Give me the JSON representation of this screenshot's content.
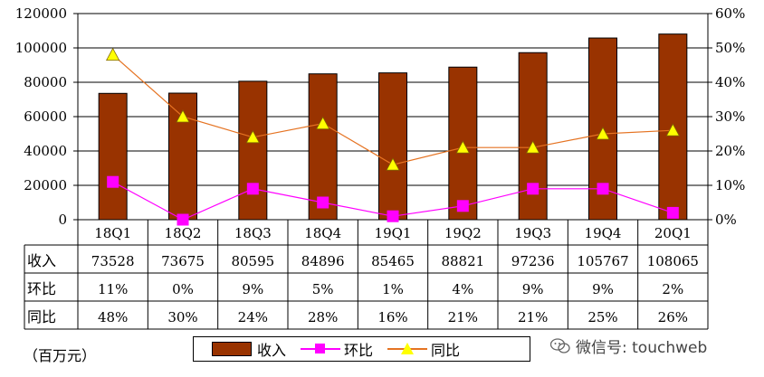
{
  "chart_data": {
    "type": "bar",
    "categories": [
      "18Q1",
      "18Q2",
      "18Q3",
      "18Q4",
      "19Q1",
      "19Q2",
      "19Q3",
      "19Q4",
      "20Q1"
    ],
    "series": [
      {
        "name": "收入",
        "type": "bar",
        "axis": "left",
        "values": [
          73528,
          73675,
          80595,
          84896,
          85465,
          88821,
          97236,
          105767,
          108065
        ]
      },
      {
        "name": "环比",
        "type": "line",
        "axis": "right",
        "values": [
          11,
          0,
          9,
          5,
          1,
          4,
          9,
          9,
          2
        ]
      },
      {
        "name": "同比",
        "type": "line",
        "axis": "right",
        "values": [
          48,
          30,
          24,
          28,
          16,
          21,
          21,
          25,
          26
        ]
      }
    ],
    "ylim_left": [
      0,
      120000
    ],
    "yticks_left": [
      "0",
      "20000",
      "40000",
      "60000",
      "80000",
      "100000",
      "120000"
    ],
    "ylim_right": [
      0,
      60
    ],
    "yticks_right": [
      "0%",
      "10%",
      "20%",
      "30%",
      "40%",
      "50%",
      "60%"
    ],
    "legend": "bottom",
    "grid": true,
    "colors": {
      "bar": "#993300",
      "mom": "#ff00ff",
      "mom_marker": "#ff00ff",
      "yoy": "#e57322",
      "yoy_marker": "#ffff00"
    },
    "table": {
      "rows": [
        {
          "label": "收入",
          "values": [
            "73528",
            "73675",
            "80595",
            "84896",
            "85465",
            "88821",
            "97236",
            "105767",
            "108065"
          ]
        },
        {
          "label": "环比",
          "values": [
            "11%",
            "0%",
            "9%",
            "5%",
            "1%",
            "4%",
            "9%",
            "9%",
            "2%"
          ]
        },
        {
          "label": "同比",
          "values": [
            "48%",
            "30%",
            "24%",
            "28%",
            "16%",
            "21%",
            "21%",
            "25%",
            "26%"
          ]
        }
      ]
    }
  },
  "unit_label": "（百万元）",
  "legend_labels": {
    "revenue": "收入",
    "mom": "环比",
    "yoy": "同比"
  },
  "watermark": "微信号: touchweb"
}
